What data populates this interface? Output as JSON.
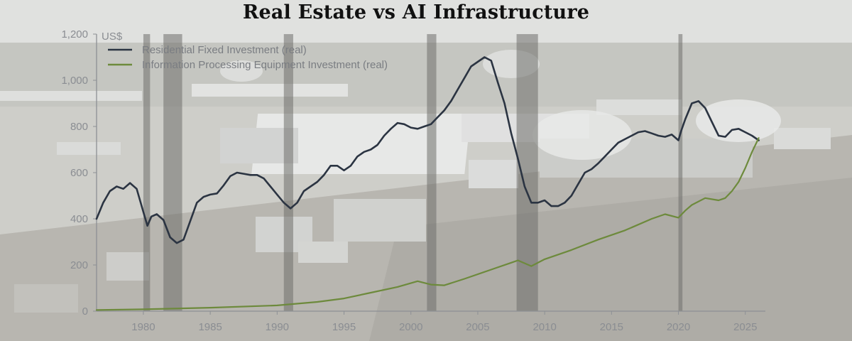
{
  "chart_data": {
    "type": "line",
    "title": "Real Estate vs AI Infrastructure",
    "ylabel": "US$",
    "xlim": [
      1976.5,
      2026.5
    ],
    "ylim": [
      0,
      1200
    ],
    "xticks": [
      "1980",
      "1985",
      "1990",
      "1995",
      "2000",
      "2005",
      "2010",
      "2015",
      "2020",
      "2025"
    ],
    "yticks": [
      "0",
      "200",
      "400",
      "600",
      "800",
      "1,000",
      "1,200"
    ],
    "recessions": [
      [
        1980.0,
        1980.5
      ],
      [
        1981.5,
        1982.9
      ],
      [
        1990.5,
        1991.2
      ],
      [
        2001.2,
        2001.9
      ],
      [
        2007.9,
        2009.5
      ],
      [
        2020.0,
        2020.3
      ]
    ],
    "series": [
      {
        "name": "Residential Fixed Investment (real)",
        "color": "#2b3442",
        "points": [
          [
            1976.5,
            400
          ],
          [
            1977,
            470
          ],
          [
            1977.5,
            520
          ],
          [
            1978,
            540
          ],
          [
            1978.5,
            530
          ],
          [
            1979,
            555
          ],
          [
            1979.5,
            530
          ],
          [
            1980,
            430
          ],
          [
            1980.3,
            370
          ],
          [
            1980.6,
            410
          ],
          [
            1981,
            420
          ],
          [
            1981.5,
            395
          ],
          [
            1982,
            320
          ],
          [
            1982.5,
            295
          ],
          [
            1983,
            310
          ],
          [
            1983.5,
            390
          ],
          [
            1984,
            470
          ],
          [
            1984.5,
            495
          ],
          [
            1985,
            505
          ],
          [
            1985.5,
            510
          ],
          [
            1986,
            545
          ],
          [
            1986.5,
            585
          ],
          [
            1987,
            600
          ],
          [
            1987.5,
            595
          ],
          [
            1988,
            590
          ],
          [
            1988.5,
            590
          ],
          [
            1989,
            575
          ],
          [
            1989.5,
            540
          ],
          [
            1990,
            505
          ],
          [
            1990.5,
            470
          ],
          [
            1991,
            445
          ],
          [
            1991.5,
            470
          ],
          [
            1992,
            520
          ],
          [
            1992.5,
            540
          ],
          [
            1993,
            560
          ],
          [
            1993.5,
            590
          ],
          [
            1994,
            630
          ],
          [
            1994.5,
            630
          ],
          [
            1995,
            610
          ],
          [
            1995.5,
            630
          ],
          [
            1996,
            670
          ],
          [
            1996.5,
            690
          ],
          [
            1997,
            700
          ],
          [
            1997.5,
            720
          ],
          [
            1998,
            760
          ],
          [
            1998.5,
            790
          ],
          [
            1999,
            815
          ],
          [
            1999.5,
            810
          ],
          [
            2000,
            795
          ],
          [
            2000.5,
            790
          ],
          [
            2001,
            800
          ],
          [
            2001.5,
            810
          ],
          [
            2002,
            840
          ],
          [
            2002.5,
            870
          ],
          [
            2003,
            910
          ],
          [
            2003.5,
            960
          ],
          [
            2004,
            1010
          ],
          [
            2004.5,
            1060
          ],
          [
            2005,
            1080
          ],
          [
            2005.5,
            1100
          ],
          [
            2006,
            1085
          ],
          [
            2006.5,
            990
          ],
          [
            2007,
            900
          ],
          [
            2007.5,
            770
          ],
          [
            2008,
            660
          ],
          [
            2008.5,
            540
          ],
          [
            2009,
            470
          ],
          [
            2009.5,
            470
          ],
          [
            2010,
            480
          ],
          [
            2010.5,
            455
          ],
          [
            2011,
            455
          ],
          [
            2011.5,
            470
          ],
          [
            2012,
            500
          ],
          [
            2012.5,
            550
          ],
          [
            2013,
            600
          ],
          [
            2013.5,
            615
          ],
          [
            2014,
            640
          ],
          [
            2014.5,
            670
          ],
          [
            2015,
            700
          ],
          [
            2015.5,
            730
          ],
          [
            2016,
            745
          ],
          [
            2016.5,
            760
          ],
          [
            2017,
            775
          ],
          [
            2017.5,
            780
          ],
          [
            2018,
            770
          ],
          [
            2018.5,
            760
          ],
          [
            2019,
            755
          ],
          [
            2019.5,
            765
          ],
          [
            2020,
            740
          ],
          [
            2020.2,
            780
          ],
          [
            2020.5,
            830
          ],
          [
            2021,
            900
          ],
          [
            2021.5,
            910
          ],
          [
            2022,
            880
          ],
          [
            2022.5,
            820
          ],
          [
            2023,
            760
          ],
          [
            2023.5,
            755
          ],
          [
            2024,
            785
          ],
          [
            2024.5,
            790
          ],
          [
            2025,
            775
          ],
          [
            2025.5,
            760
          ],
          [
            2026,
            740
          ]
        ]
      },
      {
        "name": "Information Processing Equipment Investment (real)",
        "color": "#6d8a3c",
        "points": [
          [
            1976.5,
            5
          ],
          [
            1980,
            8
          ],
          [
            1985,
            15
          ],
          [
            1990,
            25
          ],
          [
            1993,
            40
          ],
          [
            1995,
            55
          ],
          [
            1997,
            80
          ],
          [
            1999,
            105
          ],
          [
            2000.5,
            130
          ],
          [
            2001.5,
            115
          ],
          [
            2002.5,
            112
          ],
          [
            2004,
            140
          ],
          [
            2006,
            180
          ],
          [
            2007.5,
            210
          ],
          [
            2008,
            220
          ],
          [
            2009,
            195
          ],
          [
            2010,
            225
          ],
          [
            2012,
            265
          ],
          [
            2014,
            310
          ],
          [
            2016,
            350
          ],
          [
            2018,
            400
          ],
          [
            2019,
            420
          ],
          [
            2020,
            405
          ],
          [
            2020.5,
            435
          ],
          [
            2021,
            460
          ],
          [
            2022,
            490
          ],
          [
            2023,
            480
          ],
          [
            2023.5,
            490
          ],
          [
            2024,
            520
          ],
          [
            2024.5,
            560
          ],
          [
            2025,
            620
          ],
          [
            2025.5,
            690
          ],
          [
            2026,
            750
          ]
        ]
      }
    ]
  }
}
